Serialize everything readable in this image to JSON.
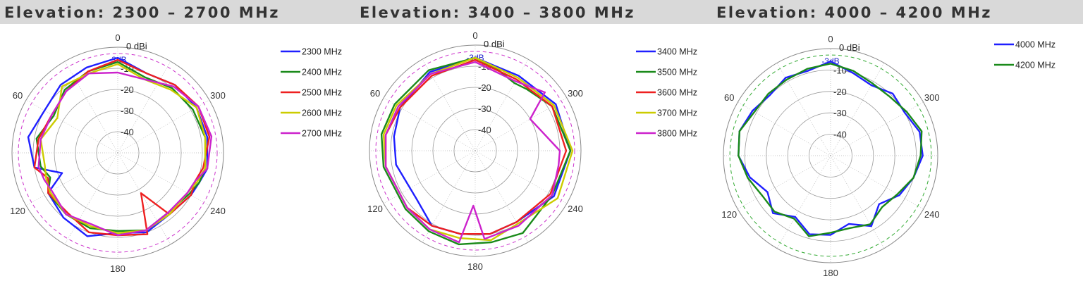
{
  "panels": [
    {
      "title": "Elevation: 2300 – 2700 MHz"
    },
    {
      "title": "Elevation: 3400 – 3800 MHz"
    },
    {
      "title": "Elevation: 4000 – 4200 MHz"
    }
  ],
  "chart_data": [
    {
      "type": "polar-line",
      "title": "Elevation: 2300 – 2700 MHz",
      "angle_ticks": [
        "0",
        "60",
        "120",
        "180",
        "240",
        "300"
      ],
      "radial_ticks": [
        "-40",
        "-30",
        "-20",
        "-10"
      ],
      "max_label": "0 dBi",
      "ref_label": "-3dB",
      "ref_color": "#cc33cc",
      "series": [
        {
          "name": "2300 MHz",
          "color": "#1f1fff",
          "angles": [
            0,
            20,
            40,
            60,
            80,
            100,
            110,
            120,
            140,
            160,
            180,
            200,
            220,
            240,
            250,
            260,
            280,
            300,
            320,
            340
          ],
          "values": [
            -5,
            -7,
            -8,
            -10,
            -7,
            -10,
            -22,
            -12,
            -10,
            -8,
            -12,
            -10,
            -12,
            -10,
            -9,
            -7,
            -7,
            -7,
            -8,
            -10
          ]
        },
        {
          "name": "2400 MHz",
          "color": "#1a8a1a",
          "angles": [
            0,
            20,
            40,
            60,
            80,
            100,
            110,
            120,
            140,
            160,
            180,
            200,
            220,
            240,
            250,
            260,
            280,
            300,
            320,
            340
          ],
          "values": [
            -7,
            -9,
            -11,
            -15,
            -11,
            -13,
            -16,
            -12,
            -12,
            -12,
            -13,
            -11,
            -13,
            -11,
            -9,
            -8,
            -8,
            -9,
            -10,
            -12
          ]
        },
        {
          "name": "2500 MHz",
          "color": "#ee2020",
          "angles": [
            0,
            20,
            40,
            60,
            80,
            100,
            110,
            120,
            140,
            160,
            180,
            200,
            210,
            220,
            240,
            250,
            260,
            280,
            300,
            320,
            340
          ],
          "values": [
            -6,
            -9,
            -12,
            -14,
            -12,
            -10,
            -15,
            -12,
            -13,
            -10,
            -11,
            -9,
            -28,
            -12,
            -10,
            -11,
            -9,
            -6,
            -6,
            -8,
            -10
          ]
        },
        {
          "name": "2600 MHz",
          "color": "#cccc00",
          "angles": [
            0,
            20,
            40,
            60,
            80,
            100,
            110,
            120,
            140,
            160,
            180,
            200,
            220,
            240,
            250,
            260,
            280,
            300,
            320,
            340
          ],
          "values": [
            -8,
            -10,
            -9,
            -17,
            -13,
            -15,
            -14,
            -13,
            -12,
            -13,
            -12,
            -11,
            -12,
            -12,
            -10,
            -8,
            -8,
            -7,
            -11,
            -13
          ]
        },
        {
          "name": "2700 MHz",
          "color": "#cc22cc",
          "angles": [
            0,
            20,
            40,
            60,
            80,
            100,
            110,
            120,
            140,
            160,
            180,
            200,
            220,
            240,
            250,
            260,
            280,
            300,
            320,
            340
          ],
          "values": [
            -12,
            -10,
            -12,
            -14,
            -13,
            -12,
            -13,
            -14,
            -12,
            -14,
            -11,
            -11,
            -13,
            -12,
            -11,
            -7,
            -5,
            -6,
            -9,
            -13
          ]
        }
      ]
    },
    {
      "type": "polar-line",
      "title": "Elevation: 3400 – 3800 MHz",
      "angle_ticks": [
        "0",
        "60",
        "120",
        "180",
        "240",
        "300"
      ],
      "radial_ticks": [
        "-40",
        "-30",
        "-20",
        "-10"
      ],
      "max_label": "0 dBi",
      "ref_label": "-3dB",
      "ref_color": "#cc33cc",
      "series": [
        {
          "name": "3400 MHz",
          "color": "#1f1fff",
          "angles": [
            0,
            30,
            60,
            80,
            100,
            130,
            150,
            170,
            190,
            210,
            240,
            270,
            300,
            330
          ],
          "values": [
            -6,
            -7,
            -9,
            -11,
            -12,
            -14,
            -9,
            -10,
            -10,
            -11,
            -7,
            -5,
            -6,
            -9
          ]
        },
        {
          "name": "3500 MHz",
          "color": "#1a8a1a",
          "angles": [
            0,
            30,
            60,
            80,
            100,
            130,
            150,
            170,
            190,
            210,
            240,
            270,
            300,
            320,
            330,
            345
          ],
          "values": [
            -6,
            -6,
            -6,
            -5,
            -6,
            -7,
            -6,
            -5,
            -6,
            -5,
            -8,
            -5,
            -8,
            -12,
            -13,
            -10
          ]
        },
        {
          "name": "3600 MHz",
          "color": "#ee2020",
          "angles": [
            0,
            30,
            60,
            80,
            100,
            130,
            150,
            170,
            190,
            210,
            240,
            270,
            300,
            330
          ],
          "values": [
            -7,
            -9,
            -9,
            -7,
            -7,
            -8,
            -9,
            -10,
            -10,
            -11,
            -9,
            -7,
            -8,
            -11
          ]
        },
        {
          "name": "3700 MHz",
          "color": "#cccc00",
          "angles": [
            0,
            30,
            60,
            80,
            100,
            130,
            150,
            170,
            190,
            210,
            240,
            270,
            300,
            330
          ],
          "values": [
            -6,
            -8,
            -7,
            -6,
            -7,
            -8,
            -7,
            -8,
            -7,
            -10,
            -5,
            -4,
            -7,
            -10
          ]
        },
        {
          "name": "3800 MHz",
          "color": "#cc22cc",
          "angles": [
            0,
            30,
            60,
            80,
            100,
            130,
            150,
            170,
            178,
            186,
            210,
            240,
            260,
            270,
            300,
            310,
            330
          ],
          "values": [
            -8,
            -8,
            -8,
            -7,
            -7,
            -8,
            -7,
            -6,
            -24,
            -8,
            -9,
            -8,
            -10,
            -10,
            -20,
            -7,
            -12
          ]
        }
      ]
    },
    {
      "type": "polar-line",
      "title": "Elevation: 4000 – 4200 MHz",
      "angle_ticks": [
        "0",
        "60",
        "120",
        "180",
        "240",
        "300"
      ],
      "radial_ticks": [
        "-40",
        "-30",
        "-20",
        "-10"
      ],
      "max_label": "0 dBi",
      "ref_label": "-3dB",
      "ref_color": "#33aa33",
      "series": [
        {
          "name": "4000 MHz",
          "color": "#1f1fff",
          "angles": [
            0,
            15,
            30,
            45,
            60,
            75,
            90,
            105,
            120,
            135,
            150,
            165,
            180,
            195,
            210,
            225,
            240,
            255,
            270,
            285,
            300,
            315,
            330,
            345
          ],
          "values": [
            -6,
            -9,
            -8,
            -10,
            -8,
            -6,
            -7,
            -11,
            -16,
            -12,
            -17,
            -12,
            -13,
            -17,
            -12,
            -18,
            -13,
            -10,
            -7,
            -7,
            -10,
            -9,
            -12,
            -10
          ]
        },
        {
          "name": "4200 MHz",
          "color": "#1a8a1a",
          "angles": [
            0,
            15,
            30,
            45,
            60,
            75,
            90,
            105,
            120,
            135,
            150,
            165,
            180,
            195,
            210,
            225,
            240,
            255,
            270,
            285,
            300,
            315,
            330,
            345
          ],
          "values": [
            -7,
            -8,
            -9,
            -9,
            -9,
            -6,
            -7,
            -10,
            -13,
            -13,
            -16,
            -11,
            -14,
            -15,
            -13,
            -16,
            -14,
            -10,
            -8,
            -6,
            -9,
            -11,
            -11,
            -9
          ]
        }
      ]
    }
  ]
}
